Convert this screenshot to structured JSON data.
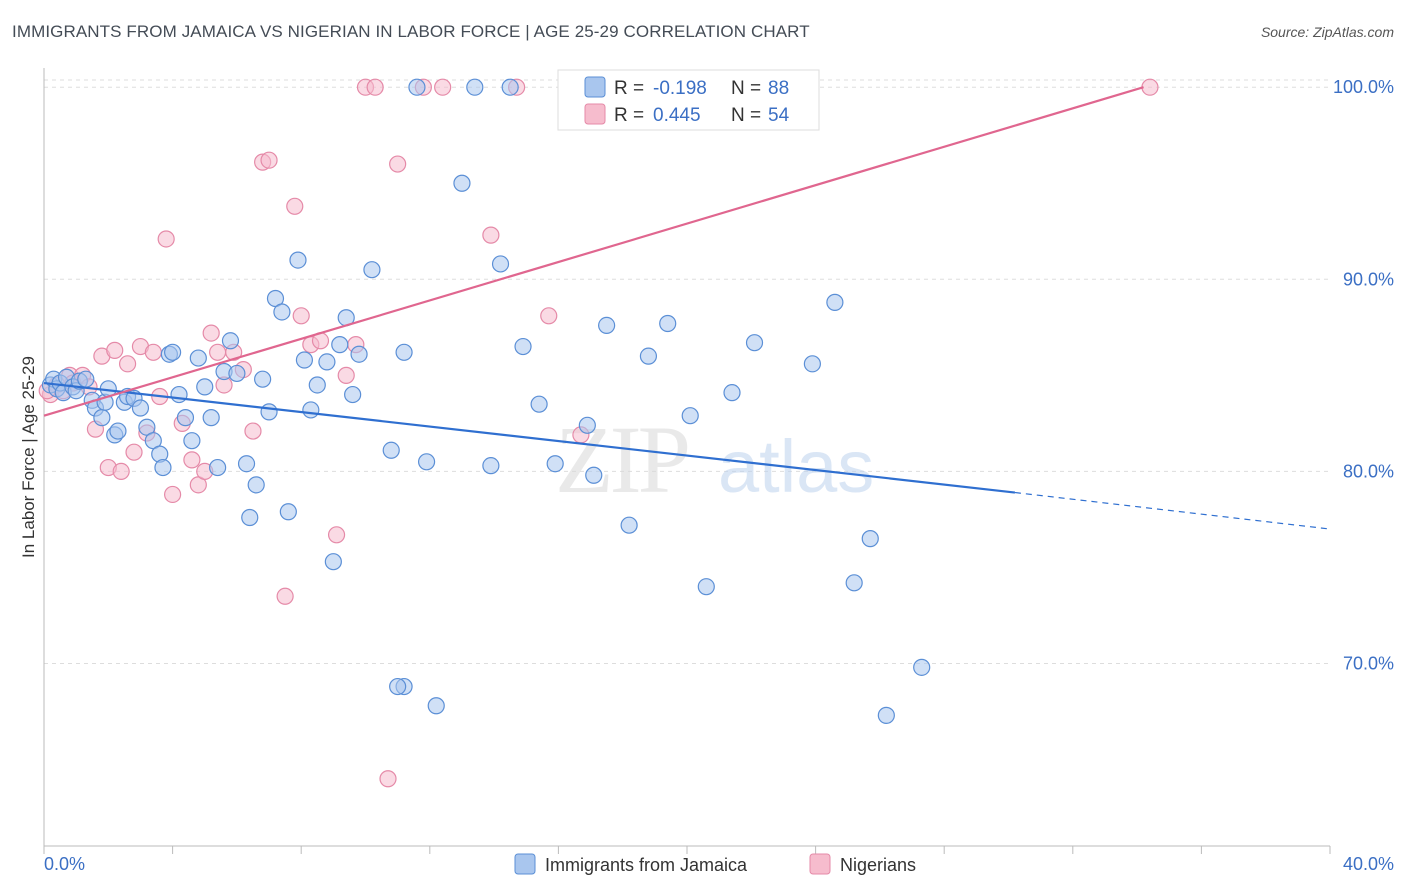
{
  "title": "IMMIGRANTS FROM JAMAICA VS NIGERIAN IN LABOR FORCE | AGE 25-29 CORRELATION CHART",
  "source": "Source: ZipAtlas.com",
  "watermark": {
    "part1": "ZIP",
    "part2": "atlas"
  },
  "colors": {
    "blue_fill": "#a9c6ee",
    "blue_stroke": "#5b8fd6",
    "blue_line": "#2f6fd0",
    "pink_fill": "#f6bccd",
    "pink_stroke": "#e58aa8",
    "pink_line": "#e0668f",
    "axis_text": "#3b6fc4",
    "grid": "#dddddd"
  },
  "legend": {
    "r_label": "R =",
    "n_label": "N =",
    "items": [
      {
        "r": "-0.198",
        "n": "88"
      },
      {
        "r": "0.445",
        "n": "54"
      }
    ]
  },
  "chart_data": {
    "type": "scatter",
    "title": "IMMIGRANTS FROM JAMAICA VS NIGERIAN IN LABOR FORCE | AGE 25-29 CORRELATION CHART",
    "xlabel": "",
    "ylabel": "In Labor Force | Age 25-29",
    "xlim": [
      0,
      40
    ],
    "ylim": [
      60.5,
      101
    ],
    "x_tick_labels": [
      "0.0%",
      "40.0%"
    ],
    "y_ticks": [
      70,
      80,
      90,
      100
    ],
    "y_tick_labels": [
      "70.0%",
      "80.0%",
      "90.0%",
      "100.0%"
    ],
    "grid": true,
    "legend_position": "top-center",
    "series": [
      {
        "name": "Immigrants from Jamaica",
        "trend": {
          "x0": 0,
          "y0": 84.6,
          "x1": 30.2,
          "y1": 78.9,
          "dashed_to_x": 40,
          "dashed_to_y": 77.0
        },
        "points": [
          [
            0.2,
            84.5
          ],
          [
            0.3,
            84.8
          ],
          [
            0.4,
            84.3
          ],
          [
            0.5,
            84.6
          ],
          [
            0.6,
            84.1
          ],
          [
            0.7,
            84.9
          ],
          [
            0.9,
            84.4
          ],
          [
            1.0,
            84.2
          ],
          [
            1.1,
            84.7
          ],
          [
            1.3,
            84.8
          ],
          [
            1.5,
            83.7
          ],
          [
            1.6,
            83.3
          ],
          [
            1.8,
            82.8
          ],
          [
            1.9,
            83.6
          ],
          [
            2.0,
            84.3
          ],
          [
            2.2,
            81.9
          ],
          [
            2.3,
            82.1
          ],
          [
            2.5,
            83.6
          ],
          [
            2.6,
            83.9
          ],
          [
            2.8,
            83.8
          ],
          [
            3.0,
            83.3
          ],
          [
            3.2,
            82.3
          ],
          [
            3.4,
            81.6
          ],
          [
            3.6,
            80.9
          ],
          [
            3.7,
            80.2
          ],
          [
            3.9,
            86.1
          ],
          [
            4.0,
            86.2
          ],
          [
            4.2,
            84.0
          ],
          [
            4.4,
            82.8
          ],
          [
            4.6,
            81.6
          ],
          [
            4.8,
            85.9
          ],
          [
            5.0,
            84.4
          ],
          [
            5.2,
            82.8
          ],
          [
            5.4,
            80.2
          ],
          [
            5.6,
            85.2
          ],
          [
            5.8,
            86.8
          ],
          [
            6.0,
            85.1
          ],
          [
            6.3,
            80.4
          ],
          [
            6.4,
            77.6
          ],
          [
            6.6,
            79.3
          ],
          [
            6.8,
            84.8
          ],
          [
            7.0,
            83.1
          ],
          [
            7.2,
            89.0
          ],
          [
            7.4,
            88.3
          ],
          [
            7.6,
            77.9
          ],
          [
            7.9,
            91.0
          ],
          [
            8.1,
            85.8
          ],
          [
            8.3,
            83.2
          ],
          [
            8.5,
            84.5
          ],
          [
            8.8,
            85.7
          ],
          [
            9.0,
            75.3
          ],
          [
            9.2,
            86.6
          ],
          [
            9.4,
            88.0
          ],
          [
            9.6,
            84.0
          ],
          [
            9.8,
            86.1
          ],
          [
            10.2,
            90.5
          ],
          [
            10.8,
            81.1
          ],
          [
            11.2,
            86.2
          ],
          [
            11.6,
            100.0
          ],
          [
            11.9,
            80.5
          ],
          [
            12.2,
            67.8
          ],
          [
            13.0,
            95.0
          ],
          [
            13.4,
            100.0
          ],
          [
            13.9,
            80.3
          ],
          [
            14.2,
            90.8
          ],
          [
            14.5,
            100.0
          ],
          [
            14.9,
            86.5
          ],
          [
            15.4,
            83.5
          ],
          [
            15.9,
            80.4
          ],
          [
            16.3,
            100.0
          ],
          [
            16.9,
            82.4
          ],
          [
            17.1,
            79.8
          ],
          [
            17.5,
            87.6
          ],
          [
            18.2,
            77.2
          ],
          [
            18.8,
            86.0
          ],
          [
            19.4,
            87.7
          ],
          [
            20.1,
            82.9
          ],
          [
            20.6,
            74.0
          ],
          [
            21.4,
            84.1
          ],
          [
            22.1,
            86.7
          ],
          [
            23.9,
            85.6
          ],
          [
            24.6,
            88.8
          ],
          [
            25.2,
            74.2
          ],
          [
            25.7,
            76.5
          ],
          [
            26.2,
            67.3
          ],
          [
            27.3,
            69.8
          ],
          [
            11.2,
            68.8
          ],
          [
            11.0,
            68.8
          ]
        ]
      },
      {
        "name": "Nigerians",
        "trend": {
          "x0": 0,
          "y0": 82.9,
          "x1": 34.2,
          "y1": 100.0
        },
        "points": [
          [
            0.2,
            84.0
          ],
          [
            0.4,
            84.5
          ],
          [
            0.6,
            84.2
          ],
          [
            0.8,
            85.0
          ],
          [
            0.9,
            84.6
          ],
          [
            1.2,
            85.0
          ],
          [
            1.4,
            84.4
          ],
          [
            1.6,
            82.2
          ],
          [
            1.8,
            86.0
          ],
          [
            2.0,
            80.2
          ],
          [
            2.2,
            86.3
          ],
          [
            2.4,
            80.0
          ],
          [
            2.6,
            85.6
          ],
          [
            2.8,
            81.0
          ],
          [
            3.0,
            86.5
          ],
          [
            3.2,
            82.0
          ],
          [
            3.4,
            86.2
          ],
          [
            3.6,
            83.9
          ],
          [
            3.8,
            92.1
          ],
          [
            4.0,
            78.8
          ],
          [
            4.3,
            82.5
          ],
          [
            4.6,
            80.6
          ],
          [
            4.8,
            79.3
          ],
          [
            5.0,
            80.0
          ],
          [
            5.2,
            87.2
          ],
          [
            5.4,
            86.2
          ],
          [
            5.6,
            84.5
          ],
          [
            5.9,
            86.2
          ],
          [
            6.2,
            85.3
          ],
          [
            6.5,
            82.1
          ],
          [
            6.8,
            96.1
          ],
          [
            7.0,
            96.2
          ],
          [
            7.5,
            73.5
          ],
          [
            7.8,
            93.8
          ],
          [
            8.0,
            88.1
          ],
          [
            8.3,
            86.6
          ],
          [
            8.6,
            86.8
          ],
          [
            9.1,
            76.7
          ],
          [
            9.4,
            85.0
          ],
          [
            9.7,
            86.6
          ],
          [
            10.0,
            100.0
          ],
          [
            10.3,
            100.0
          ],
          [
            10.7,
            64.0
          ],
          [
            11.0,
            96.0
          ],
          [
            11.8,
            100.0
          ],
          [
            12.4,
            100.0
          ],
          [
            13.9,
            92.3
          ],
          [
            14.7,
            100.0
          ],
          [
            15.7,
            88.1
          ],
          [
            16.7,
            81.9
          ],
          [
            17.4,
            100.0
          ],
          [
            18.7,
            100.0
          ],
          [
            34.4,
            100.0
          ],
          [
            0.1,
            84.2
          ]
        ]
      }
    ]
  }
}
